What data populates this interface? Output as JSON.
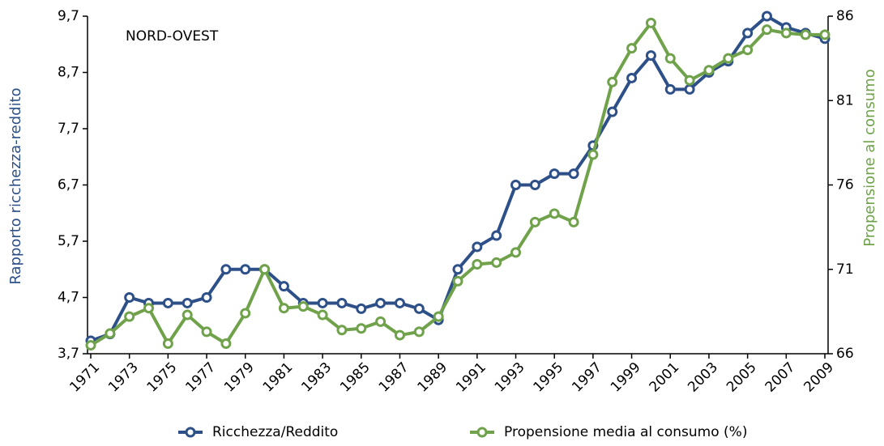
{
  "chart_data": {
    "type": "line",
    "annotation": "NORD-OVEST",
    "y_label": "Rapporto ricchezza-reddito",
    "y2_label": "Propensione al consumo",
    "x": [
      1971,
      1972,
      1973,
      1974,
      1975,
      1976,
      1977,
      1978,
      1979,
      1980,
      1981,
      1982,
      1983,
      1984,
      1985,
      1986,
      1987,
      1988,
      1989,
      1990,
      1991,
      1992,
      1993,
      1994,
      1995,
      1996,
      1997,
      1998,
      1999,
      2000,
      2001,
      2002,
      2003,
      2004,
      2005,
      2006,
      2007,
      2008,
      2009
    ],
    "xlim": [
      1971,
      2009
    ],
    "xticks": [
      1971,
      1973,
      1975,
      1977,
      1979,
      1981,
      1983,
      1985,
      1987,
      1989,
      1991,
      1993,
      1995,
      1997,
      1999,
      2001,
      2003,
      2005,
      2007,
      2009
    ],
    "ylim": [
      3.7,
      9.7
    ],
    "yticks": [
      {
        "value": 3.7,
        "label": "3,7"
      },
      {
        "value": 4.7,
        "label": "4,7"
      },
      {
        "value": 5.7,
        "label": "5,7"
      },
      {
        "value": 6.7,
        "label": "6,7"
      },
      {
        "value": 7.7,
        "label": "7,7"
      },
      {
        "value": 8.7,
        "label": "8,7"
      },
      {
        "value": 9.7,
        "label": "9,7"
      }
    ],
    "y2lim": [
      66,
      86
    ],
    "y2ticks": [
      66,
      71,
      76,
      81,
      86
    ],
    "legend": "bottom",
    "series": [
      {
        "name": "Ricchezza/Reddito",
        "color": "#2e5088",
        "values": [
          3.93,
          4.05,
          4.7,
          4.6,
          4.6,
          4.6,
          4.7,
          5.2,
          5.2,
          5.2,
          4.9,
          4.6,
          4.6,
          4.6,
          4.5,
          4.6,
          4.6,
          4.5,
          4.3,
          5.2,
          5.6,
          5.8,
          6.7,
          6.7,
          6.9,
          6.9,
          7.4,
          8.0,
          8.6,
          9.0,
          8.4,
          8.4,
          8.7,
          8.9,
          9.4,
          9.7,
          9.5,
          9.4,
          9.3
        ]
      },
      {
        "name": "Propensione media al consumo (%)",
        "color": "#6fa24a",
        "axis": "y2",
        "values": [
          66.5,
          67.2,
          68.2,
          68.7,
          66.6,
          68.3,
          67.3,
          66.6,
          68.4,
          71.0,
          68.7,
          68.8,
          68.3,
          67.4,
          67.5,
          67.9,
          67.1,
          67.3,
          68.2,
          70.3,
          71.3,
          71.4,
          72.0,
          73.8,
          74.3,
          73.8,
          77.8,
          82.1,
          84.1,
          85.6,
          83.5,
          82.2,
          82.8,
          83.5,
          84.0,
          85.2,
          85.0,
          84.9,
          84.9
        ]
      }
    ]
  }
}
